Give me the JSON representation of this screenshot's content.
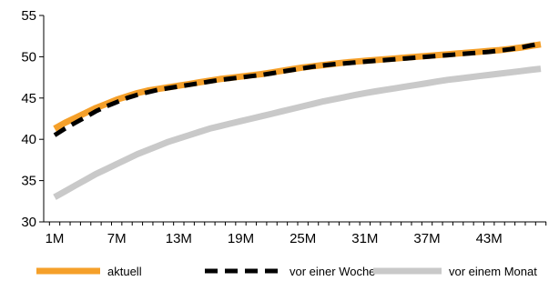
{
  "chart_data": {
    "type": "line",
    "title": "",
    "xlabel": "",
    "ylabel": "",
    "x": [
      1,
      2,
      3,
      4,
      5,
      6,
      7,
      8,
      9,
      10,
      11,
      12,
      13,
      14,
      15,
      16,
      17,
      18,
      19,
      20,
      21,
      22,
      23,
      24,
      25,
      26,
      27,
      28,
      29,
      30,
      31,
      32,
      33,
      34,
      35,
      36,
      37,
      38,
      39,
      40,
      41,
      42,
      43,
      44,
      45,
      46,
      47,
      48
    ],
    "x_tick_labels": [
      "1M",
      "7M",
      "13M",
      "19M",
      "25M",
      "31M",
      "37M",
      "43M"
    ],
    "x_tick_values": [
      1,
      7,
      13,
      19,
      25,
      31,
      37,
      43
    ],
    "ylim": [
      30,
      55
    ],
    "y_ticks": [
      30,
      35,
      40,
      45,
      50,
      55
    ],
    "grid": false,
    "legend_position": "bottom",
    "series": [
      {
        "name": "aktuell",
        "color": "#f5a02a",
        "dash": "solid",
        "values": [
          41.3,
          42.0,
          42.6,
          43.2,
          43.8,
          44.3,
          44.8,
          45.2,
          45.6,
          45.9,
          46.1,
          46.3,
          46.5,
          46.7,
          46.9,
          47.1,
          47.3,
          47.45,
          47.6,
          47.75,
          47.9,
          48.1,
          48.3,
          48.5,
          48.7,
          48.85,
          49.0,
          49.15,
          49.3,
          49.4,
          49.5,
          49.6,
          49.7,
          49.8,
          49.9,
          50.0,
          50.1,
          50.2,
          50.3,
          50.4,
          50.5,
          50.6,
          50.7,
          50.8,
          50.95,
          51.1,
          51.3,
          51.5
        ]
      },
      {
        "name": "vor einer Woche",
        "color": "#000000",
        "dash": "dashed",
        "values": [
          40.5,
          41.3,
          42.0,
          42.7,
          43.4,
          44.0,
          44.5,
          45.0,
          45.4,
          45.7,
          46.0,
          46.2,
          46.4,
          46.6,
          46.8,
          47.0,
          47.2,
          47.35,
          47.5,
          47.65,
          47.8,
          48.0,
          48.2,
          48.4,
          48.6,
          48.8,
          48.95,
          49.1,
          49.2,
          49.3,
          49.4,
          49.5,
          49.6,
          49.7,
          49.8,
          49.9,
          50.0,
          50.1,
          50.2,
          50.3,
          50.4,
          50.5,
          50.6,
          50.75,
          50.9,
          51.1,
          51.35,
          51.6
        ]
      },
      {
        "name": "vor einem Monat",
        "color": "#c9c9c9",
        "dash": "solid",
        "values": [
          33.0,
          33.7,
          34.4,
          35.1,
          35.8,
          36.4,
          37.0,
          37.6,
          38.2,
          38.7,
          39.2,
          39.7,
          40.1,
          40.5,
          40.9,
          41.3,
          41.6,
          41.9,
          42.2,
          42.5,
          42.8,
          43.1,
          43.4,
          43.7,
          44.0,
          44.3,
          44.6,
          44.85,
          45.1,
          45.35,
          45.6,
          45.8,
          46.0,
          46.2,
          46.4,
          46.6,
          46.8,
          47.0,
          47.2,
          47.35,
          47.5,
          47.65,
          47.8,
          47.95,
          48.1,
          48.25,
          48.4,
          48.55
        ]
      }
    ]
  }
}
